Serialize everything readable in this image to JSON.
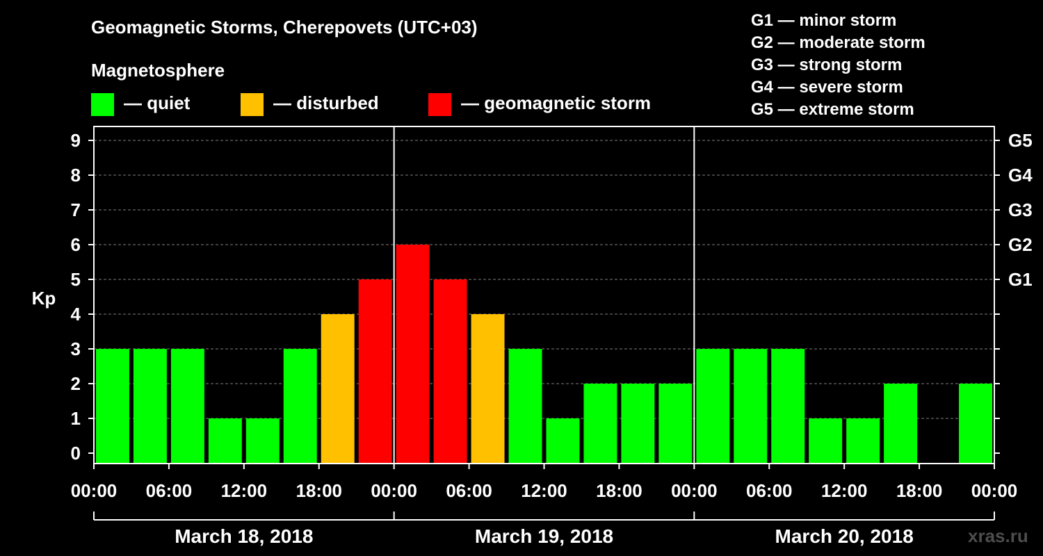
{
  "title": "Geomagnetic Storms, Cherepovets (UTC+03)",
  "legend": {
    "title": "Magnetosphere",
    "items": [
      {
        "label": "— quiet",
        "color": "#00ff00"
      },
      {
        "label": "— disturbed",
        "color": "#ffc000"
      },
      {
        "label": "— geomagnetic storm",
        "color": "#ff0000"
      }
    ]
  },
  "g_scale": [
    "G1 — minor storm",
    "G2 — moderate storm",
    "G3 — strong storm",
    "G4 — severe storm",
    "G5 — extreme storm"
  ],
  "watermark": "xras.ru",
  "chart_data": {
    "type": "bar",
    "ylabel": "Kp",
    "ylim": [
      0,
      9
    ],
    "yticks": [
      "0",
      "1",
      "2",
      "3",
      "4",
      "5",
      "6",
      "7",
      "8",
      "9"
    ],
    "right_axis_labels": [
      {
        "kp": 5,
        "label": "G1"
      },
      {
        "kp": 6,
        "label": "G2"
      },
      {
        "kp": 7,
        "label": "G3"
      },
      {
        "kp": 8,
        "label": "G4"
      },
      {
        "kp": 9,
        "label": "G5"
      }
    ],
    "x_tick_labels": [
      "00:00",
      "06:00",
      "12:00",
      "18:00",
      "00:00",
      "06:00",
      "12:00",
      "18:00",
      "00:00",
      "06:00",
      "12:00",
      "18:00",
      "00:00"
    ],
    "days": [
      "March 18, 2018",
      "March 19, 2018",
      "March 20, 2018"
    ],
    "interval_hours": 3,
    "values": [
      3,
      3,
      3,
      1,
      1,
      3,
      4,
      5,
      6,
      5,
      4,
      3,
      1,
      2,
      2,
      2,
      3,
      3,
      3,
      1,
      1,
      2,
      0,
      2
    ],
    "colors": {
      "quiet": "#00ff00",
      "disturbed": "#ffc000",
      "storm": "#ff0000"
    },
    "grid": true
  }
}
